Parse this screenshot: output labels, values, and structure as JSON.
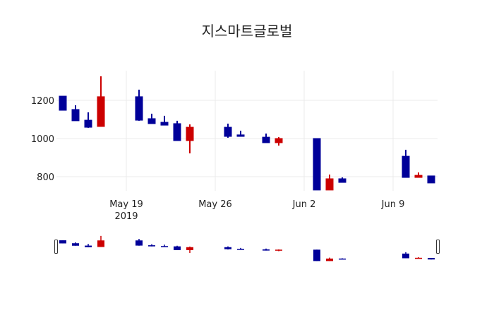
{
  "chart_data": {
    "type": "candlestick",
    "title": "지스마트글로벌",
    "xlabel": "",
    "ylabel": "",
    "ylim": [
      720,
      1350
    ],
    "yticks": [
      800,
      1000,
      1200
    ],
    "xticks": [
      {
        "label": "May 19",
        "sublabel": "2019"
      },
      {
        "label": "May 26",
        "sublabel": ""
      },
      {
        "label": "Jun 2",
        "sublabel": ""
      },
      {
        "label": "Jun 9",
        "sublabel": ""
      }
    ],
    "increasing_color": "#cc0000",
    "decreasing_color": "#000099",
    "grid": true,
    "rangeslider": true,
    "candles": [
      {
        "date": "2019-05-14",
        "open": 1222,
        "high": 1222,
        "low": 1148,
        "close": 1148
      },
      {
        "date": "2019-05-15",
        "open": 1152,
        "high": 1174,
        "low": 1093,
        "close": 1093
      },
      {
        "date": "2019-05-16",
        "open": 1096,
        "high": 1137,
        "low": 1056,
        "close": 1059
      },
      {
        "date": "2019-05-17",
        "open": 1063,
        "high": 1326,
        "low": 1063,
        "close": 1219
      },
      {
        "date": "2019-05-20",
        "open": 1219,
        "high": 1256,
        "low": 1093,
        "close": 1096
      },
      {
        "date": "2019-05-21",
        "open": 1104,
        "high": 1130,
        "low": 1078,
        "close": 1078
      },
      {
        "date": "2019-05-22",
        "open": 1085,
        "high": 1119,
        "low": 1070,
        "close": 1070
      },
      {
        "date": "2019-05-23",
        "open": 1078,
        "high": 1093,
        "low": 989,
        "close": 989
      },
      {
        "date": "2019-05-24",
        "open": 989,
        "high": 1074,
        "low": 922,
        "close": 1059
      },
      {
        "date": "2019-05-27",
        "open": 1059,
        "high": 1078,
        "low": 1004,
        "close": 1011
      },
      {
        "date": "2019-05-28",
        "open": 1019,
        "high": 1041,
        "low": 1011,
        "close": 1011
      },
      {
        "date": "2019-05-30",
        "open": 1007,
        "high": 1026,
        "low": 978,
        "close": 978
      },
      {
        "date": "2019-05-31",
        "open": 978,
        "high": 1007,
        "low": 963,
        "close": 1000
      },
      {
        "date": "2019-06-03",
        "open": 1000,
        "high": 1000,
        "low": 730,
        "close": 730
      },
      {
        "date": "2019-06-04",
        "open": 730,
        "high": 811,
        "low": 730,
        "close": 789
      },
      {
        "date": "2019-06-05",
        "open": 789,
        "high": 796,
        "low": 770,
        "close": 770
      },
      {
        "date": "2019-06-10",
        "open": 907,
        "high": 941,
        "low": 796,
        "close": 796
      },
      {
        "date": "2019-06-11",
        "open": 796,
        "high": 822,
        "low": 796,
        "close": 807
      },
      {
        "date": "2019-06-12",
        "open": 804,
        "high": 804,
        "low": 767,
        "close": 767
      }
    ]
  }
}
